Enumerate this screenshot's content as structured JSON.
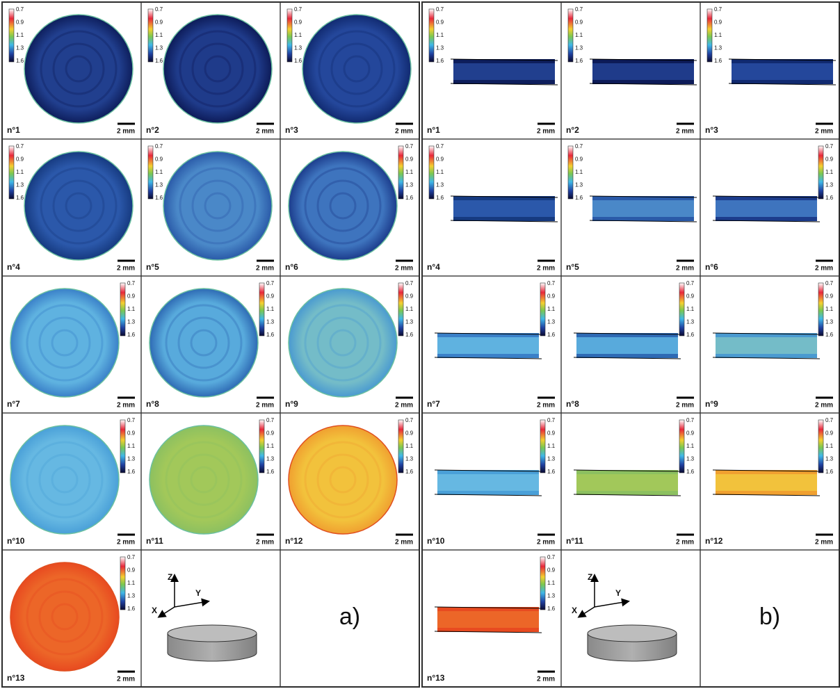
{
  "colorbar": {
    "ticks": [
      0.7,
      0.9,
      1.1,
      1.3,
      1.6
    ]
  },
  "scale_bar": "2 mm",
  "axes": {
    "z": "Z",
    "y": "Y",
    "x": "X"
  },
  "panels": [
    {
      "label": "a)",
      "samples": [
        "n°1",
        "n°2",
        "n°3",
        "n°4",
        "n°5",
        "n°6",
        "n°7",
        "n°8",
        "n°9",
        "n°10",
        "n°11",
        "n°12",
        "n°13"
      ]
    },
    {
      "label": "b)",
      "samples": [
        "n°1",
        "n°2",
        "n°3",
        "n°4",
        "n°5",
        "n°6",
        "n°7",
        "n°8",
        "n°9",
        "n°10",
        "n°11",
        "n°12",
        "n°13"
      ]
    }
  ]
}
